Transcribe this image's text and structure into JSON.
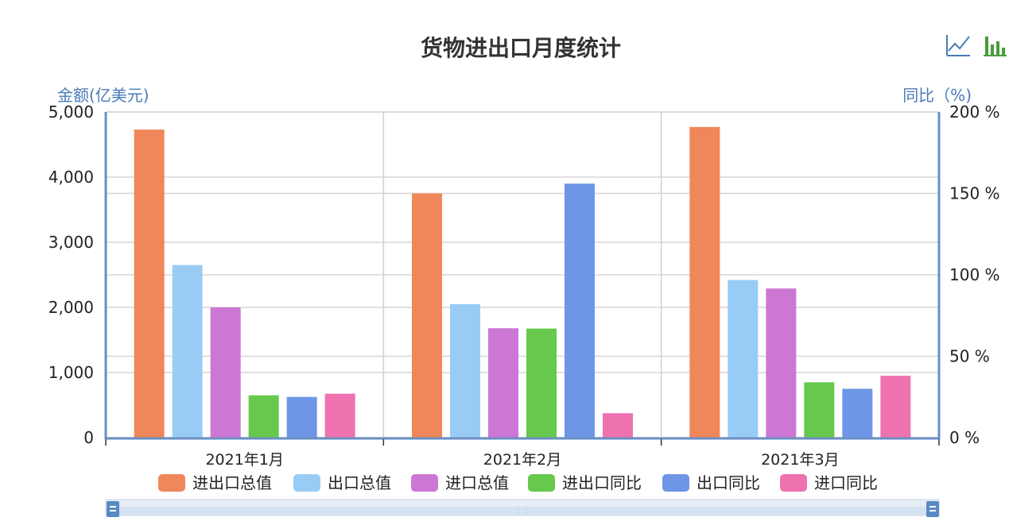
{
  "toolbox": {
    "icons": [
      "line-chart-icon",
      "bar-chart-icon"
    ],
    "color": "#4a7bb7"
  },
  "chart_data": {
    "type": "bar",
    "title": "货物进出口月度统计",
    "categories": [
      "2021年1月",
      "2021年2月",
      "2021年3月"
    ],
    "y_left": {
      "name": "金额(亿美元)",
      "ylim": [
        0,
        5000
      ],
      "ticks": [
        0,
        1000,
        2000,
        3000,
        4000,
        5000
      ],
      "tick_labels": [
        "0",
        "1,000",
        "2,000",
        "3,000",
        "4,000",
        "5,000"
      ]
    },
    "y_right": {
      "name": "同比（%)",
      "ylim": [
        0,
        200
      ],
      "ticks": [
        0,
        50,
        100,
        150,
        200
      ],
      "tick_labels": [
        "0 %",
        "50 %",
        "100 %",
        "150 %",
        "200 %"
      ]
    },
    "series": [
      {
        "name": "进出口总值",
        "axis": "left",
        "color": "#f0875a",
        "values": [
          4730,
          3750,
          4770
        ]
      },
      {
        "name": "出口总值",
        "axis": "left",
        "color": "#99ccf5",
        "values": [
          2650,
          2050,
          2420
        ]
      },
      {
        "name": "进口总值",
        "axis": "left",
        "color": "#cc77d4",
        "values": [
          2000,
          1680,
          2290
        ]
      },
      {
        "name": "进出口同比",
        "axis": "right",
        "color": "#66c84c",
        "values": [
          26,
          67,
          34
        ]
      },
      {
        "name": "出口同比",
        "axis": "right",
        "color": "#6f96e6",
        "values": [
          25,
          156,
          30
        ]
      },
      {
        "name": "进口同比",
        "axis": "right",
        "color": "#ee72b0",
        "values": [
          27,
          15,
          38
        ]
      }
    ],
    "grid": true,
    "legend_position": "bottom",
    "data_zoom": true
  }
}
